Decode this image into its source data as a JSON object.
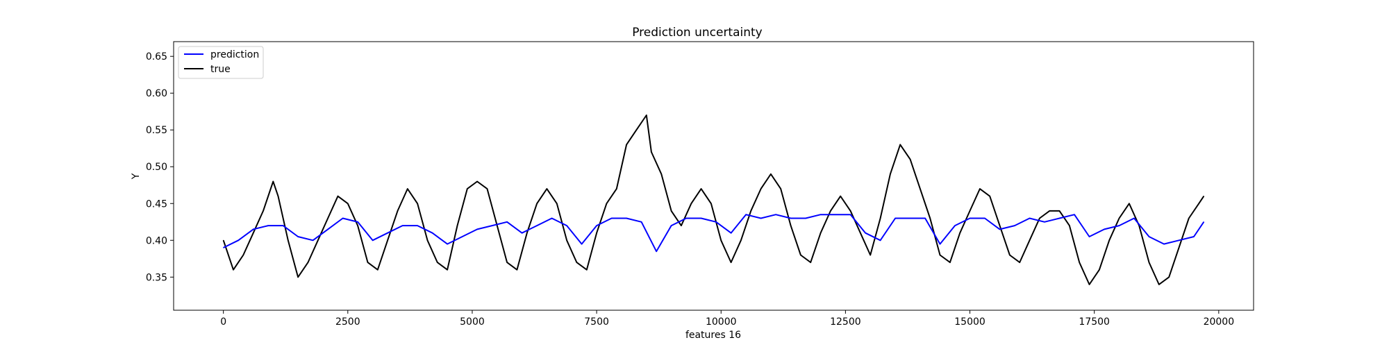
{
  "chart_data": {
    "type": "line",
    "title": "Prediction uncertainty",
    "xlabel": "features 16",
    "ylabel": "Y",
    "xlim": [
      -1000,
      20700
    ],
    "ylim": [
      0.305,
      0.67
    ],
    "xticks": [
      0,
      2500,
      5000,
      7500,
      10000,
      12500,
      15000,
      17500,
      20000
    ],
    "yticks": [
      0.35,
      0.4,
      0.45,
      0.5,
      0.55,
      0.6,
      0.65
    ],
    "ytick_labels": [
      "0.35",
      "0.40",
      "0.45",
      "0.50",
      "0.55",
      "0.60",
      "0.65"
    ],
    "grid": false,
    "legend": {
      "position": "top-left",
      "entries": [
        "prediction",
        "true"
      ]
    },
    "series": [
      {
        "name": "prediction",
        "color": "#0000ff",
        "x": [
          0,
          300,
          600,
          900,
          1200,
          1500,
          1800,
          2100,
          2400,
          2700,
          3000,
          3300,
          3600,
          3900,
          4200,
          4500,
          4800,
          5100,
          5400,
          5700,
          6000,
          6300,
          6600,
          6900,
          7200,
          7500,
          7800,
          8100,
          8400,
          8700,
          9000,
          9300,
          9600,
          9900,
          10200,
          10500,
          10800,
          11100,
          11400,
          11700,
          12000,
          12300,
          12600,
          12900,
          13200,
          13500,
          13800,
          14100,
          14400,
          14700,
          15000,
          15300,
          15600,
          15900,
          16200,
          16500,
          16800,
          17100,
          17400,
          17700,
          18000,
          18300,
          18600,
          18900,
          19200,
          19500,
          19700
        ],
        "values": [
          0.39,
          0.4,
          0.415,
          0.42,
          0.42,
          0.405,
          0.4,
          0.415,
          0.43,
          0.425,
          0.4,
          0.41,
          0.42,
          0.42,
          0.41,
          0.395,
          0.405,
          0.415,
          0.42,
          0.425,
          0.41,
          0.42,
          0.43,
          0.42,
          0.395,
          0.42,
          0.43,
          0.43,
          0.425,
          0.385,
          0.42,
          0.43,
          0.43,
          0.425,
          0.41,
          0.435,
          0.43,
          0.435,
          0.43,
          0.43,
          0.435,
          0.435,
          0.435,
          0.41,
          0.4,
          0.43,
          0.43,
          0.43,
          0.395,
          0.42,
          0.43,
          0.43,
          0.415,
          0.42,
          0.43,
          0.425,
          0.43,
          0.435,
          0.405,
          0.415,
          0.42,
          0.43,
          0.405,
          0.395,
          0.4,
          0.405,
          0.425
        ]
      },
      {
        "name": "true",
        "color": "#000000",
        "x": [
          0,
          200,
          400,
          600,
          800,
          1000,
          1100,
          1300,
          1500,
          1700,
          1900,
          2100,
          2300,
          2500,
          2700,
          2900,
          3100,
          3300,
          3500,
          3700,
          3900,
          4100,
          4300,
          4500,
          4700,
          4900,
          5100,
          5300,
          5500,
          5700,
          5900,
          6100,
          6300,
          6500,
          6700,
          6900,
          7100,
          7300,
          7500,
          7700,
          7900,
          8100,
          8300,
          8500,
          8600,
          8800,
          9000,
          9200,
          9400,
          9600,
          9800,
          10000,
          10200,
          10400,
          10600,
          10800,
          11000,
          11200,
          11400,
          11600,
          11800,
          12000,
          12200,
          12400,
          12600,
          12800,
          13000,
          13200,
          13400,
          13600,
          13800,
          14000,
          14200,
          14400,
          14600,
          14800,
          15000,
          15200,
          15400,
          15600,
          15800,
          16000,
          16200,
          16400,
          16600,
          16800,
          17000,
          17200,
          17400,
          17600,
          17800,
          18000,
          18200,
          18400,
          18600,
          18800,
          19000,
          19200,
          19400,
          19600,
          19700
        ],
        "values": [
          0.4,
          0.36,
          0.38,
          0.41,
          0.44,
          0.48,
          0.46,
          0.4,
          0.35,
          0.37,
          0.4,
          0.43,
          0.46,
          0.45,
          0.42,
          0.37,
          0.36,
          0.4,
          0.44,
          0.47,
          0.45,
          0.4,
          0.37,
          0.36,
          0.42,
          0.47,
          0.48,
          0.47,
          0.42,
          0.37,
          0.36,
          0.41,
          0.45,
          0.47,
          0.45,
          0.4,
          0.37,
          0.36,
          0.41,
          0.45,
          0.47,
          0.53,
          0.55,
          0.57,
          0.52,
          0.49,
          0.44,
          0.42,
          0.45,
          0.47,
          0.45,
          0.4,
          0.37,
          0.4,
          0.44,
          0.47,
          0.49,
          0.47,
          0.42,
          0.38,
          0.37,
          0.41,
          0.44,
          0.46,
          0.44,
          0.41,
          0.38,
          0.43,
          0.49,
          0.53,
          0.51,
          0.47,
          0.43,
          0.38,
          0.37,
          0.41,
          0.44,
          0.47,
          0.46,
          0.42,
          0.38,
          0.37,
          0.4,
          0.43,
          0.44,
          0.44,
          0.42,
          0.37,
          0.34,
          0.36,
          0.4,
          0.43,
          0.45,
          0.42,
          0.37,
          0.34,
          0.35,
          0.39,
          0.43,
          0.45,
          0.46
        ]
      }
    ]
  }
}
